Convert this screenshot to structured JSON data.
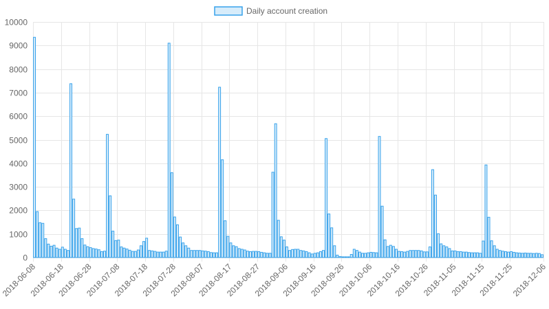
{
  "chart_data": {
    "type": "bar",
    "legend": {
      "label": "Daily account creation",
      "position": "top-center"
    },
    "colors": {
      "bar_fill": "#d7ecfa",
      "bar_stroke": "#36a2eb",
      "grid": "#e6e6e6",
      "tick_text": "#666666"
    },
    "grid": true,
    "x_start_date": "2018-06-08",
    "x_end_date": "2018-12-06",
    "x_tick_labels": [
      "2018-06-08",
      "2018-06-18",
      "2018-06-28",
      "2018-07-08",
      "2018-07-18",
      "2018-07-28",
      "2018-08-07",
      "2018-08-17",
      "2018-08-27",
      "2018-09-06",
      "2018-09-16",
      "2018-09-26",
      "2018-10-06",
      "2018-10-16",
      "2018-10-26",
      "2018-11-05",
      "2018-11-15",
      "2018-11-25",
      "2018-12-06"
    ],
    "ylim": [
      0,
      10000
    ],
    "y_ticks": [
      0,
      1000,
      2000,
      3000,
      4000,
      5000,
      6000,
      7000,
      8000,
      9000,
      10000
    ],
    "values": [
      9350,
      1950,
      1480,
      1450,
      800,
      570,
      480,
      520,
      400,
      350,
      440,
      350,
      300,
      7380,
      2480,
      1230,
      1250,
      800,
      530,
      460,
      420,
      380,
      360,
      330,
      250,
      270,
      5230,
      2620,
      1120,
      720,
      740,
      450,
      400,
      360,
      310,
      260,
      260,
      320,
      500,
      680,
      820,
      300,
      280,
      260,
      230,
      230,
      230,
      270,
      9100,
      3600,
      1720,
      1390,
      870,
      620,
      500,
      400,
      300,
      300,
      300,
      300,
      280,
      270,
      250,
      210,
      200,
      200,
      7230,
      4150,
      1560,
      900,
      620,
      500,
      460,
      380,
      350,
      320,
      270,
      250,
      260,
      260,
      250,
      220,
      200,
      180,
      180,
      3620,
      5680,
      1580,
      880,
      740,
      450,
      300,
      340,
      350,
      350,
      300,
      280,
      250,
      200,
      150,
      180,
      200,
      250,
      300,
      5050,
      1850,
      1260,
      500,
      100,
      40,
      30,
      30,
      30,
      130,
      350,
      300,
      230,
      180,
      180,
      200,
      220,
      210,
      200,
      5140,
      2180,
      750,
      470,
      520,
      470,
      350,
      260,
      250,
      230,
      260,
      300,
      300,
      300,
      300,
      280,
      240,
      240,
      450,
      3730,
      2650,
      1010,
      580,
      500,
      450,
      380,
      280,
      280,
      250,
      250,
      230,
      230,
      210,
      200,
      200,
      200,
      180,
      700,
      3930,
      1710,
      710,
      500,
      350,
      300,
      270,
      250,
      230,
      250,
      220,
      200,
      190,
      180,
      190,
      180,
      180,
      170,
      180,
      170,
      120
    ]
  }
}
